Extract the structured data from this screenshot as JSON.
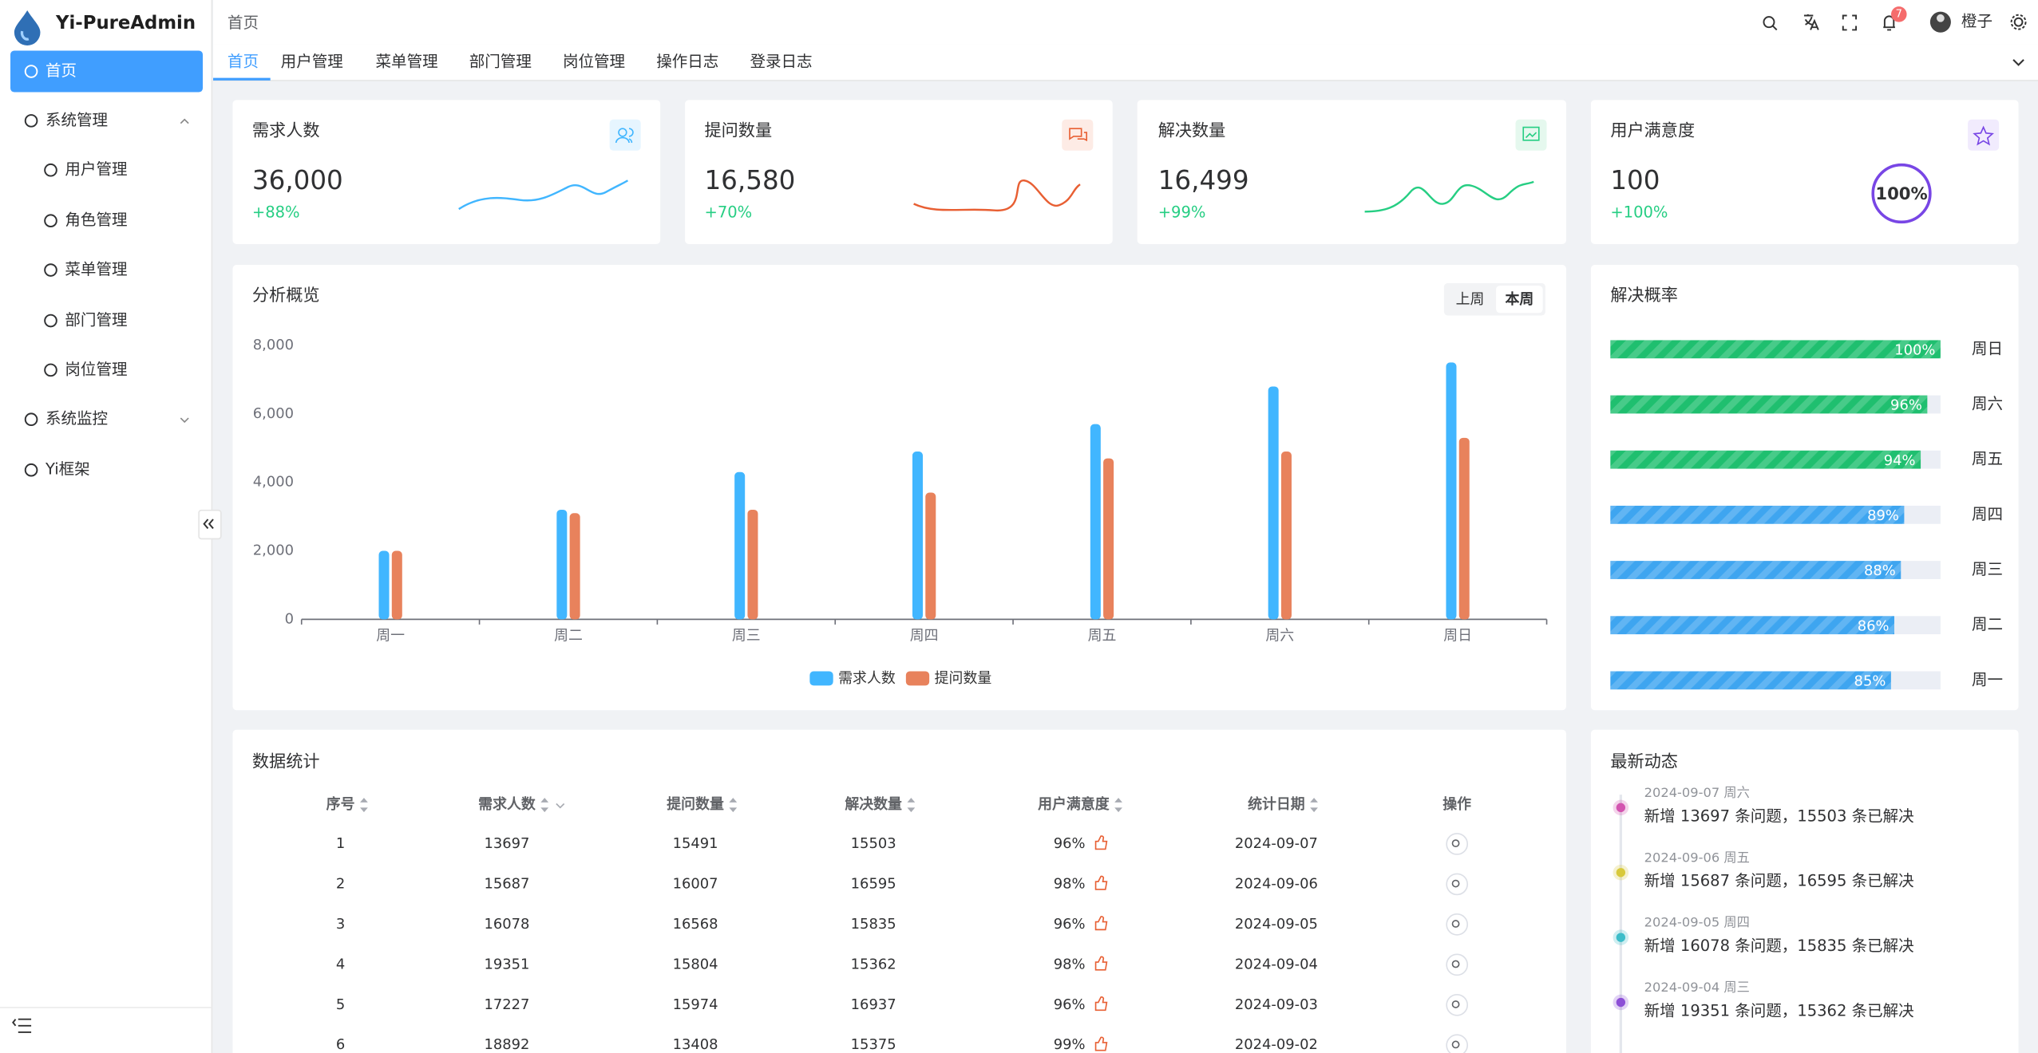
{
  "sidebar": {
    "brand": "Yi-PureAdmin",
    "menu": [
      "首页",
      "系统管理",
      "用户管理",
      "角色管理",
      "菜单管理",
      "部门管理",
      "岗位管理",
      "系统监控",
      "Yi框架"
    ]
  },
  "header": {
    "breadcrumb": "首页",
    "notifications": "7",
    "user": "橙子"
  },
  "tabs": [
    "首页",
    "用户管理",
    "菜单管理",
    "部门管理",
    "岗位管理",
    "操作日志",
    "登录日志"
  ],
  "cards": [
    {
      "title": "需求人数",
      "value": "36,000",
      "change": "+88%"
    },
    {
      "title": "提问数量",
      "value": "16,580",
      "change": "+70%"
    },
    {
      "title": "解决数量",
      "value": "16,499",
      "change": "+99%"
    },
    {
      "title": "用户满意度",
      "value": "100",
      "change": "+100%",
      "ring": "100%"
    }
  ],
  "chart_data": {
    "type": "bar",
    "title": "分析概览",
    "buttons": [
      "上周",
      "本周"
    ],
    "categories": [
      "周一",
      "周二",
      "周三",
      "周四",
      "周五",
      "周六",
      "周日"
    ],
    "series": [
      {
        "name": "需求人数",
        "color": "#41b6ff",
        "values": [
          2000,
          3200,
          4300,
          4900,
          5700,
          6800,
          7500
        ]
      },
      {
        "name": "提问数量",
        "color": "#e8825c",
        "values": [
          2000,
          3100,
          3200,
          3700,
          4700,
          4900,
          5300
        ]
      }
    ],
    "ylim": [
      0,
      8000
    ],
    "yticks": [
      0,
      {
        "value": 2000,
        "label": "2,000"
      },
      {
        "value": 4000,
        "label": "4,000"
      },
      {
        "value": 6000,
        "label": "6,000"
      },
      {
        "value": 8000,
        "label": "8,000"
      }
    ]
  },
  "progress": {
    "title": "解决概率",
    "categories": [
      "周日",
      "周六",
      "周五",
      "周四",
      "周三",
      "周二",
      "周一"
    ],
    "values": [
      100,
      96,
      94,
      89,
      88,
      86,
      85
    ],
    "value_labels": [
      "100%",
      "96%",
      "94%",
      "89%",
      "88%",
      "86%",
      "85%"
    ],
    "colors": [
      "#1fbf6f",
      "#1fbf6f",
      "#1fbf6f",
      "#3ea5f0",
      "#3ea5f0",
      "#3ea5f0",
      "#3ea5f0"
    ]
  },
  "table": {
    "title": "数据统计",
    "columns": [
      "序号",
      "需求人数",
      "提问数量",
      "解决数量",
      "用户满意度",
      "统计日期",
      "操作"
    ],
    "rows": [
      [
        1,
        13697,
        15491,
        15503,
        "96%",
        "2024-09-07"
      ],
      [
        2,
        15687,
        16007,
        16595,
        "98%",
        "2024-09-06"
      ],
      [
        3,
        16078,
        16568,
        15835,
        "96%",
        "2024-09-05"
      ],
      [
        4,
        19351,
        15804,
        15362,
        "98%",
        "2024-09-04"
      ],
      [
        5,
        17227,
        15974,
        16937,
        "96%",
        "2024-09-03"
      ],
      [
        6,
        18892,
        13408,
        15375,
        "99%",
        "2024-09-02"
      ]
    ]
  },
  "activity": {
    "title": "最新动态",
    "items": [
      {
        "time": "2024-09-07 周六",
        "text": "新增 13697 条问题，15503 条已解决"
      },
      {
        "time": "2024-09-06 周五",
        "text": "新增 15687 条问题，16595 条已解决"
      },
      {
        "time": "2024-09-05 周四",
        "text": "新增 16078 条问题，15835 条已解决"
      },
      {
        "time": "2024-09-04 周三",
        "text": "新增 19351 条问题，15362 条已解决"
      }
    ]
  }
}
